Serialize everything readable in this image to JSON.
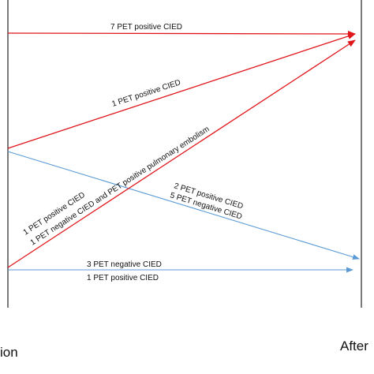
{
  "colors": {
    "red": "#e0161b",
    "blue": "#5b9bd5",
    "axis": "#222222"
  },
  "labels": {
    "before": "ion",
    "after": "After"
  },
  "transitions": [
    {
      "id": "red-top",
      "color": "red",
      "text": [
        "7 PET positive CIED"
      ]
    },
    {
      "id": "red-upper-diagonal",
      "color": "red",
      "text": [
        "1 PET positive CIED"
      ]
    },
    {
      "id": "blue-diagonal",
      "color": "blue",
      "text": [
        "2 PET positive CIED",
        "5 PET negative CIED"
      ]
    },
    {
      "id": "red-lower-diagonal",
      "color": "red",
      "text": [
        "1 PET positive CIED",
        "1 PET negative CIED and PET positive  pulmonary embolism"
      ]
    },
    {
      "id": "blue-bottom",
      "color": "blue",
      "text": [
        "3 PET negative CIED",
        "1 PET positive CIED"
      ]
    }
  ]
}
